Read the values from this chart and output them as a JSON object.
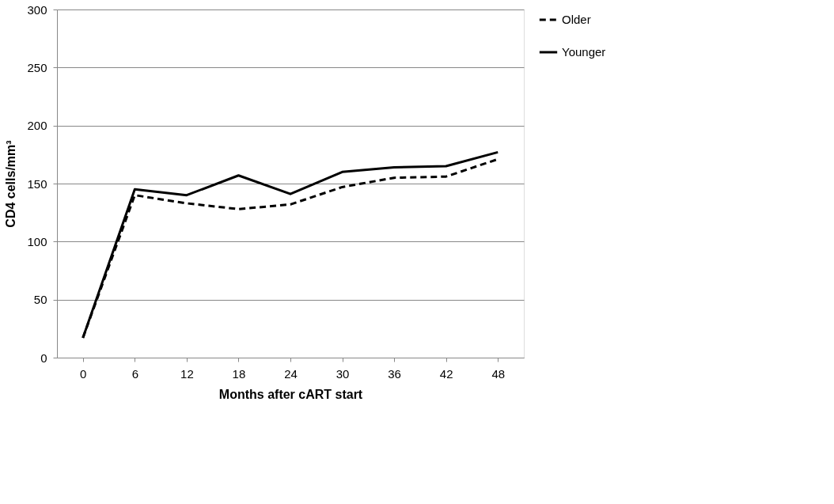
{
  "chart_data": {
    "type": "line",
    "xlabel": "Months after cART start",
    "ylabel": "CD4 cells/mm³",
    "categories": [
      "0",
      "6",
      "12",
      "18",
      "24",
      "30",
      "36",
      "42",
      "48"
    ],
    "series": [
      {
        "name": "Older",
        "color": "#000000",
        "line_style": "dashed",
        "values": [
          17,
          140,
          133,
          128,
          132,
          147,
          155,
          156,
          171
        ]
      },
      {
        "name": "Younger",
        "color": "#000000",
        "line_style": "solid",
        "values": [
          17,
          145,
          140,
          157,
          141,
          160,
          164,
          165,
          177
        ]
      }
    ],
    "ylim": [
      0,
      300
    ],
    "yticks": [
      0,
      50,
      100,
      150,
      200,
      250,
      300
    ],
    "grid": "y",
    "legend": "right",
    "marker": "none"
  }
}
